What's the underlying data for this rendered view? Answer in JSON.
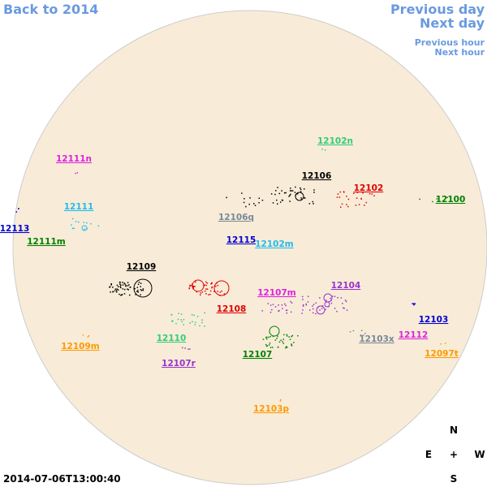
{
  "nav": {
    "back": "Back to 2014",
    "previous_day": "Previous day",
    "next_day": "Next day",
    "previous_hour": "Previous hour",
    "next_hour": "Next hour"
  },
  "regions": [
    "12102n",
    "12111n",
    "12106",
    "12102",
    "12100",
    "12111",
    "12106q",
    "12113",
    "12115",
    "12102m",
    "12111m",
    "12109",
    "12104",
    "12107m",
    "12108",
    "12103",
    "12110",
    "12112",
    "12103x",
    "12109m",
    "12097t",
    "12107",
    "12107r",
    "12103p"
  ],
  "compass": {
    "north": "N",
    "east": "E",
    "center": "+",
    "west": "W",
    "south": "S"
  },
  "timestamp": "2014-07-06T13:00:40"
}
